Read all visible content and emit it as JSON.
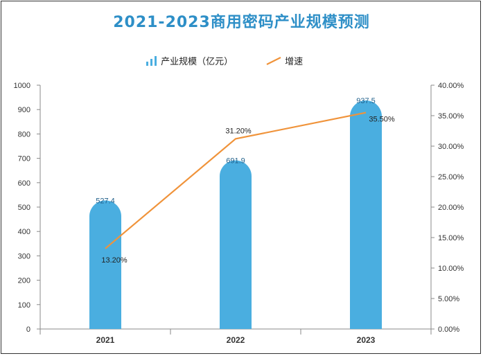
{
  "chart_data": {
    "type": "bar+line",
    "title": "2021-2023商用密码产业规模预测",
    "categories": [
      "2021",
      "2022",
      "2023"
    ],
    "series": [
      {
        "name": "产业规模（亿元）",
        "type": "bar",
        "axis": "left",
        "values": [
          527.4,
          691.9,
          937.5
        ],
        "labels": [
          "527.4",
          "691.9",
          "937.5"
        ]
      },
      {
        "name": "增速",
        "type": "line",
        "axis": "right",
        "values": [
          13.2,
          31.2,
          35.5
        ],
        "labels": [
          "13.20%",
          "31.20%",
          "35.50%"
        ]
      }
    ],
    "ylim_left": [
      0,
      1000
    ],
    "yticks_left": [
      "0",
      "100",
      "200",
      "300",
      "400",
      "500",
      "600",
      "700",
      "800",
      "900",
      "1000"
    ],
    "ylim_right": [
      0,
      40
    ],
    "yticks_right": [
      "0.00%",
      "5.00%",
      "10.00%",
      "15.00%",
      "20.00%",
      "25.00%",
      "30.00%",
      "35.00%",
      "40.00%"
    ],
    "legend_position": "top",
    "colors": {
      "bar": "#4aaee0",
      "line": "#f0933a",
      "title": "#2e8fc7"
    }
  }
}
